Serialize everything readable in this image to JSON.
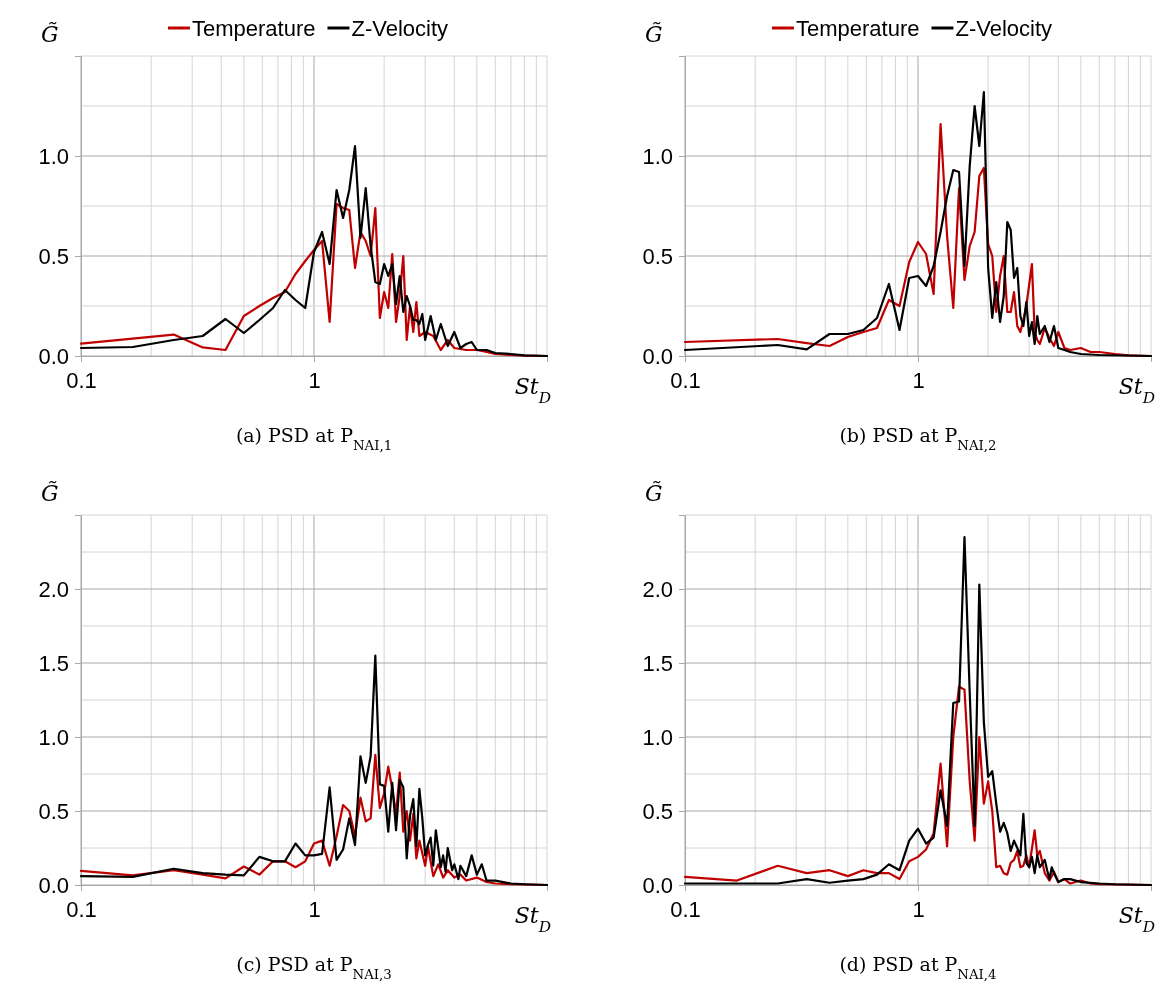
{
  "chart_data": [
    {
      "type": "line",
      "title": "(a) PSD at P$_{NAI,1}$",
      "xlabel": "St$_{D}$",
      "ylabel": "G̃",
      "log": "x",
      "grid": true,
      "legend": "top",
      "line_style": "solid",
      "marker": "none",
      "xlim": [
        0.1,
        10
      ],
      "xticks": [
        {
          "value": 0.1,
          "label": "0.1"
        },
        {
          "value": 0.2,
          "label": null
        },
        {
          "value": 0.3,
          "label": null
        },
        {
          "value": 0.4,
          "label": null
        },
        {
          "value": 0.5,
          "label": null
        },
        {
          "value": 0.6,
          "label": null
        },
        {
          "value": 0.7,
          "label": null
        },
        {
          "value": 0.8,
          "label": null
        },
        {
          "value": 0.9,
          "label": null
        },
        {
          "value": 1,
          "label": "1"
        },
        {
          "value": 2,
          "label": null
        },
        {
          "value": 3,
          "label": null
        },
        {
          "value": 4,
          "label": null
        },
        {
          "value": 5,
          "label": null
        },
        {
          "value": 6,
          "label": null
        },
        {
          "value": 7,
          "label": null
        },
        {
          "value": 8,
          "label": null
        },
        {
          "value": 9,
          "label": null
        },
        {
          "value": 10,
          "label": null
        }
      ],
      "ylim": [
        0,
        1.5
      ],
      "yticks": [
        {
          "value": 0,
          "label": "0.0"
        },
        {
          "value": 0.25,
          "label": null
        },
        {
          "value": 0.5,
          "label": "0.5"
        },
        {
          "value": 0.75,
          "label": null
        },
        {
          "value": 1,
          "label": "1.0"
        },
        {
          "value": 1.25,
          "label": null
        },
        {
          "value": 1.5,
          "label": null
        }
      ],
      "series": [
        {
          "name": "Temperature",
          "color": "#c00000",
          "x": [
            0.1,
            0.25,
            0.333,
            0.417,
            0.5,
            0.583,
            0.667,
            0.75,
            0.833,
            0.917,
            1.0,
            1.083,
            1.167,
            1.25,
            1.333,
            1.417,
            1.5,
            1.583,
            1.667,
            1.75,
            1.833,
            1.917,
            2.0,
            2.083,
            2.167,
            2.25,
            2.333,
            2.417,
            2.5,
            2.583,
            2.667,
            2.75,
            2.833,
            3.0,
            3.25,
            3.5,
            3.75,
            4.0,
            4.5,
            5.0,
            5.5,
            6.0,
            7.0,
            8.0,
            10.0
          ],
          "values": [
            0.062,
            0.107,
            0.043,
            0.03,
            0.2,
            0.25,
            0.29,
            0.32,
            0.41,
            0.475,
            0.53,
            0.575,
            0.17,
            0.76,
            0.74,
            0.73,
            0.44,
            0.62,
            0.575,
            0.5,
            0.74,
            0.19,
            0.32,
            0.24,
            0.51,
            0.17,
            0.3,
            0.5,
            0.08,
            0.25,
            0.12,
            0.27,
            0.1,
            0.12,
            0.1,
            0.03,
            0.08,
            0.04,
            0.03,
            0.03,
            0.02,
            0.01,
            0.005,
            0.002,
            0
          ]
        },
        {
          "name": "Z-Velocity",
          "color": "#000000",
          "x": [
            0.1,
            0.167,
            0.25,
            0.333,
            0.417,
            0.5,
            0.583,
            0.667,
            0.75,
            0.833,
            0.917,
            1.0,
            1.083,
            1.167,
            1.25,
            1.333,
            1.417,
            1.5,
            1.583,
            1.667,
            1.75,
            1.833,
            1.917,
            2.0,
            2.083,
            2.167,
            2.25,
            2.333,
            2.417,
            2.5,
            2.583,
            2.667,
            2.75,
            2.833,
            2.917,
            3.0,
            3.167,
            3.333,
            3.5,
            3.75,
            4.0,
            4.25,
            4.5,
            4.75,
            5.0,
            5.5,
            6.0,
            7.0,
            8.0,
            10.0
          ],
          "values": [
            0.04,
            0.045,
            0.08,
            0.1,
            0.185,
            0.115,
            0.18,
            0.24,
            0.33,
            0.28,
            0.24,
            0.52,
            0.62,
            0.46,
            0.83,
            0.69,
            0.83,
            1.05,
            0.59,
            0.84,
            0.55,
            0.37,
            0.36,
            0.46,
            0.4,
            0.46,
            0.26,
            0.4,
            0.22,
            0.3,
            0.25,
            0.18,
            0.18,
            0.16,
            0.21,
            0.08,
            0.2,
            0.08,
            0.16,
            0.05,
            0.12,
            0.04,
            0.06,
            0.07,
            0.03,
            0.03,
            0.015,
            0.01,
            0.003,
            0
          ]
        }
      ]
    },
    {
      "type": "line",
      "title": "(b) PSD at P$_{NAI,2}$",
      "xlabel": "St$_{D}$",
      "ylabel": "G̃",
      "log": "x",
      "grid": true,
      "legend": "top",
      "line_style": "solid",
      "marker": "none",
      "xlim": [
        0.1,
        10
      ],
      "xticks": [
        {
          "value": 0.1,
          "label": "0.1"
        },
        {
          "value": 0.2,
          "label": null
        },
        {
          "value": 0.3,
          "label": null
        },
        {
          "value": 0.4,
          "label": null
        },
        {
          "value": 0.5,
          "label": null
        },
        {
          "value": 0.6,
          "label": null
        },
        {
          "value": 0.7,
          "label": null
        },
        {
          "value": 0.8,
          "label": null
        },
        {
          "value": 0.9,
          "label": null
        },
        {
          "value": 1,
          "label": "1"
        },
        {
          "value": 2,
          "label": null
        },
        {
          "value": 3,
          "label": null
        },
        {
          "value": 4,
          "label": null
        },
        {
          "value": 5,
          "label": null
        },
        {
          "value": 6,
          "label": null
        },
        {
          "value": 7,
          "label": null
        },
        {
          "value": 8,
          "label": null
        },
        {
          "value": 9,
          "label": null
        },
        {
          "value": 10,
          "label": null
        }
      ],
      "ylim": [
        0,
        1.5
      ],
      "yticks": [
        {
          "value": 0,
          "label": "0.0"
        },
        {
          "value": 0.25,
          "label": null
        },
        {
          "value": 0.5,
          "label": "0.5"
        },
        {
          "value": 0.75,
          "label": null
        },
        {
          "value": 1,
          "label": "1.0"
        },
        {
          "value": 1.25,
          "label": null
        },
        {
          "value": 1.5,
          "label": null
        }
      ],
      "series": [
        {
          "name": "Temperature",
          "color": "#c00000",
          "x": [
            0.1,
            0.25,
            0.333,
            0.417,
            0.5,
            0.583,
            0.667,
            0.75,
            0.833,
            0.917,
            1.0,
            1.083,
            1.167,
            1.25,
            1.333,
            1.417,
            1.5,
            1.583,
            1.667,
            1.75,
            1.833,
            1.917,
            2.0,
            2.083,
            2.167,
            2.25,
            2.333,
            2.417,
            2.5,
            2.583,
            2.667,
            2.75,
            2.833,
            2.917,
            3.083,
            3.167,
            3.25,
            3.333,
            3.5,
            3.667,
            3.833,
            4.0,
            4.25,
            4.5,
            5.0,
            5.5,
            6.0,
            7.0,
            8.0,
            10.0
          ],
          "values": [
            0.07,
            0.085,
            0.064,
            0.05,
            0.095,
            0.12,
            0.14,
            0.28,
            0.25,
            0.47,
            0.57,
            0.51,
            0.31,
            1.16,
            0.6,
            0.24,
            0.84,
            0.38,
            0.55,
            0.62,
            0.9,
            0.94,
            0.56,
            0.5,
            0.22,
            0.4,
            0.5,
            0.22,
            0.22,
            0.32,
            0.15,
            0.12,
            0.18,
            0.25,
            0.46,
            0.12,
            0.08,
            0.06,
            0.14,
            0.09,
            0.05,
            0.12,
            0.04,
            0.03,
            0.04,
            0.02,
            0.02,
            0.01,
            0.003,
            0
          ]
        },
        {
          "name": "Z-Velocity",
          "color": "#000000",
          "x": [
            0.1,
            0.25,
            0.333,
            0.417,
            0.5,
            0.583,
            0.667,
            0.75,
            0.833,
            0.917,
            1.0,
            1.083,
            1.167,
            1.25,
            1.333,
            1.417,
            1.5,
            1.583,
            1.667,
            1.75,
            1.833,
            1.917,
            2.0,
            2.083,
            2.167,
            2.25,
            2.333,
            2.417,
            2.5,
            2.583,
            2.667,
            2.75,
            2.833,
            2.917,
            3.0,
            3.083,
            3.167,
            3.25,
            3.333,
            3.5,
            3.667,
            3.833,
            4.0,
            4.25,
            4.5,
            5.0,
            6.0,
            10.0
          ],
          "values": [
            0.03,
            0.055,
            0.033,
            0.11,
            0.11,
            0.13,
            0.19,
            0.36,
            0.13,
            0.39,
            0.4,
            0.35,
            0.45,
            0.62,
            0.8,
            0.93,
            0.92,
            0.45,
            0.95,
            1.25,
            1.05,
            1.32,
            0.44,
            0.19,
            0.37,
            0.17,
            0.3,
            0.67,
            0.63,
            0.39,
            0.44,
            0.2,
            0.15,
            0.27,
            0.1,
            0.17,
            0.06,
            0.2,
            0.11,
            0.15,
            0.07,
            0.15,
            0.04,
            0.03,
            0.02,
            0.01,
            0.005,
            0
          ]
        }
      ]
    },
    {
      "type": "line",
      "title": "(c) PSD at P$_{NAI,3}$",
      "xlabel": "St$_{D}$",
      "ylabel": "G̃",
      "log": "x",
      "grid": true,
      "line_style": "solid",
      "marker": "none",
      "xlim": [
        0.1,
        10
      ],
      "xticks": [
        {
          "value": 0.1,
          "label": "0.1"
        },
        {
          "value": 0.2,
          "label": null
        },
        {
          "value": 0.3,
          "label": null
        },
        {
          "value": 0.4,
          "label": null
        },
        {
          "value": 0.5,
          "label": null
        },
        {
          "value": 0.6,
          "label": null
        },
        {
          "value": 0.7,
          "label": null
        },
        {
          "value": 0.8,
          "label": null
        },
        {
          "value": 0.9,
          "label": null
        },
        {
          "value": 1,
          "label": "1"
        },
        {
          "value": 2,
          "label": null
        },
        {
          "value": 3,
          "label": null
        },
        {
          "value": 4,
          "label": null
        },
        {
          "value": 5,
          "label": null
        },
        {
          "value": 6,
          "label": null
        },
        {
          "value": 7,
          "label": null
        },
        {
          "value": 8,
          "label": null
        },
        {
          "value": 9,
          "label": null
        },
        {
          "value": 10,
          "label": null
        }
      ],
      "ylim": [
        0,
        2.5
      ],
      "yticks": [
        {
          "value": 0,
          "label": "0.0"
        },
        {
          "value": 0.25,
          "label": null
        },
        {
          "value": 0.5,
          "label": "0.5"
        },
        {
          "value": 0.75,
          "label": null
        },
        {
          "value": 1,
          "label": "1.0"
        },
        {
          "value": 1.25,
          "label": null
        },
        {
          "value": 1.5,
          "label": "1.5"
        },
        {
          "value": 1.75,
          "label": null
        },
        {
          "value": 2,
          "label": "2.0"
        },
        {
          "value": 2.25,
          "label": null
        },
        {
          "value": 2.5,
          "label": null
        }
      ],
      "series": [
        {
          "color": "#c00000",
          "x": [
            0.1,
            0.167,
            0.25,
            0.333,
            0.417,
            0.5,
            0.583,
            0.667,
            0.75,
            0.833,
            0.917,
            1.0,
            1.083,
            1.167,
            1.25,
            1.333,
            1.417,
            1.5,
            1.583,
            1.667,
            1.75,
            1.833,
            1.917,
            2.0,
            2.083,
            2.167,
            2.25,
            2.333,
            2.417,
            2.5,
            2.583,
            2.667,
            2.75,
            2.833,
            3.0,
            3.083,
            3.25,
            3.417,
            3.583,
            3.75,
            4.0,
            4.25,
            4.5,
            5.0,
            5.5,
            6.0,
            7.0,
            10.0
          ],
          "values": [
            0.095,
            0.065,
            0.1,
            0.07,
            0.045,
            0.125,
            0.07,
            0.16,
            0.16,
            0.12,
            0.16,
            0.28,
            0.3,
            0.13,
            0.33,
            0.54,
            0.5,
            0.33,
            0.59,
            0.43,
            0.45,
            0.88,
            0.52,
            0.62,
            0.8,
            0.65,
            0.48,
            0.76,
            0.36,
            0.5,
            0.3,
            0.48,
            0.18,
            0.3,
            0.13,
            0.26,
            0.06,
            0.14,
            0.05,
            0.1,
            0.05,
            0.07,
            0.03,
            0.05,
            0.02,
            0.01,
            0.005,
            0
          ]
        },
        {
          "color": "#000000",
          "x": [
            0.1,
            0.167,
            0.25,
            0.333,
            0.417,
            0.5,
            0.583,
            0.667,
            0.75,
            0.833,
            0.917,
            1.0,
            1.083,
            1.167,
            1.25,
            1.333,
            1.417,
            1.5,
            1.583,
            1.667,
            1.75,
            1.833,
            1.917,
            2.0,
            2.083,
            2.167,
            2.25,
            2.333,
            2.417,
            2.5,
            2.583,
            2.667,
            2.75,
            2.833,
            2.917,
            3.0,
            3.083,
            3.167,
            3.25,
            3.333,
            3.5,
            3.583,
            3.667,
            3.75,
            3.917,
            4.0,
            4.167,
            4.25,
            4.5,
            4.75,
            5.0,
            5.25,
            5.5,
            6.0,
            7.0,
            8.0,
            10.0
          ],
          "values": [
            0.06,
            0.055,
            0.11,
            0.08,
            0.07,
            0.065,
            0.19,
            0.16,
            0.16,
            0.28,
            0.2,
            0.2,
            0.21,
            0.66,
            0.17,
            0.24,
            0.45,
            0.27,
            0.87,
            0.69,
            0.87,
            1.55,
            0.68,
            0.67,
            0.36,
            0.69,
            0.37,
            0.71,
            0.66,
            0.18,
            0.47,
            0.58,
            0.26,
            0.65,
            0.45,
            0.2,
            0.27,
            0.32,
            0.13,
            0.37,
            0.12,
            0.2,
            0.09,
            0.25,
            0.1,
            0.14,
            0.04,
            0.13,
            0.06,
            0.2,
            0.07,
            0.14,
            0.03,
            0.03,
            0.01,
            0.005,
            0
          ]
        }
      ]
    },
    {
      "type": "line",
      "title": "(d) PSD at P$_{NAI,4}$",
      "xlabel": "St$_{D}$",
      "ylabel": "G̃",
      "log": "x",
      "grid": true,
      "line_style": "solid",
      "marker": "none",
      "xlim": [
        0.1,
        10
      ],
      "xticks": [
        {
          "value": 0.1,
          "label": "0.1"
        },
        {
          "value": 0.2,
          "label": null
        },
        {
          "value": 0.3,
          "label": null
        },
        {
          "value": 0.4,
          "label": null
        },
        {
          "value": 0.5,
          "label": null
        },
        {
          "value": 0.6,
          "label": null
        },
        {
          "value": 0.7,
          "label": null
        },
        {
          "value": 0.8,
          "label": null
        },
        {
          "value": 0.9,
          "label": null
        },
        {
          "value": 1,
          "label": "1"
        },
        {
          "value": 2,
          "label": null
        },
        {
          "value": 3,
          "label": null
        },
        {
          "value": 4,
          "label": null
        },
        {
          "value": 5,
          "label": null
        },
        {
          "value": 6,
          "label": null
        },
        {
          "value": 7,
          "label": null
        },
        {
          "value": 8,
          "label": null
        },
        {
          "value": 9,
          "label": null
        },
        {
          "value": 10,
          "label": null
        }
      ],
      "ylim": [
        0,
        2.5
      ],
      "yticks": [
        {
          "value": 0,
          "label": "0.0"
        },
        {
          "value": 0.25,
          "label": null
        },
        {
          "value": 0.5,
          "label": "0.5"
        },
        {
          "value": 0.75,
          "label": null
        },
        {
          "value": 1,
          "label": "1.0"
        },
        {
          "value": 1.25,
          "label": null
        },
        {
          "value": 1.5,
          "label": "1.5"
        },
        {
          "value": 1.75,
          "label": null
        },
        {
          "value": 2,
          "label": "2.0"
        },
        {
          "value": 2.25,
          "label": null
        },
        {
          "value": 2.5,
          "label": null
        }
      ],
      "series": [
        {
          "color": "#c00000",
          "x": [
            0.1,
            0.167,
            0.25,
            0.333,
            0.417,
            0.5,
            0.583,
            0.667,
            0.75,
            0.833,
            0.917,
            1.0,
            1.083,
            1.167,
            1.25,
            1.333,
            1.417,
            1.5,
            1.583,
            1.667,
            1.75,
            1.833,
            1.917,
            2.0,
            2.083,
            2.167,
            2.25,
            2.333,
            2.417,
            2.5,
            2.583,
            2.667,
            2.75,
            2.833,
            2.917,
            3.0,
            3.167,
            3.25,
            3.333,
            3.5,
            3.667,
            3.833,
            4.0,
            4.25,
            4.5,
            5.0,
            5.5,
            6.0,
            10.0
          ],
          "values": [
            0.055,
            0.03,
            0.13,
            0.08,
            0.1,
            0.06,
            0.1,
            0.08,
            0.08,
            0.04,
            0.16,
            0.19,
            0.24,
            0.35,
            0.82,
            0.26,
            1.0,
            1.34,
            1.32,
            0.7,
            0.3,
            1.0,
            0.55,
            0.7,
            0.5,
            0.12,
            0.13,
            0.08,
            0.07,
            0.15,
            0.17,
            0.23,
            0.12,
            0.13,
            0.2,
            0.12,
            0.37,
            0.2,
            0.23,
            0.08,
            0.03,
            0.09,
            0.02,
            0.04,
            0.01,
            0.03,
            0.01,
            0.005,
            0
          ]
        },
        {
          "color": "#000000",
          "x": [
            0.1,
            0.25,
            0.333,
            0.417,
            0.5,
            0.583,
            0.667,
            0.75,
            0.833,
            0.917,
            1.0,
            1.083,
            1.167,
            1.25,
            1.333,
            1.417,
            1.5,
            1.583,
            1.667,
            1.75,
            1.833,
            1.917,
            2.0,
            2.083,
            2.167,
            2.25,
            2.333,
            2.417,
            2.5,
            2.583,
            2.667,
            2.75,
            2.833,
            2.917,
            3.0,
            3.083,
            3.167,
            3.25,
            3.333,
            3.5,
            3.583,
            3.667,
            3.75,
            3.833,
            4.0,
            4.25,
            4.5,
            5.0,
            6.0,
            7.0,
            10.0
          ],
          "values": [
            0.01,
            0.01,
            0.04,
            0.015,
            0.03,
            0.04,
            0.07,
            0.14,
            0.1,
            0.3,
            0.38,
            0.28,
            0.32,
            0.64,
            0.4,
            1.23,
            1.24,
            2.35,
            1.3,
            0.4,
            2.03,
            1.1,
            0.73,
            0.77,
            0.55,
            0.36,
            0.42,
            0.35,
            0.23,
            0.3,
            0.25,
            0.2,
            0.48,
            0.15,
            0.12,
            0.19,
            0.08,
            0.2,
            0.12,
            0.17,
            0.1,
            0.04,
            0.12,
            0.08,
            0.02,
            0.04,
            0.04,
            0.02,
            0.01,
            0.005,
            0
          ]
        }
      ]
    }
  ]
}
